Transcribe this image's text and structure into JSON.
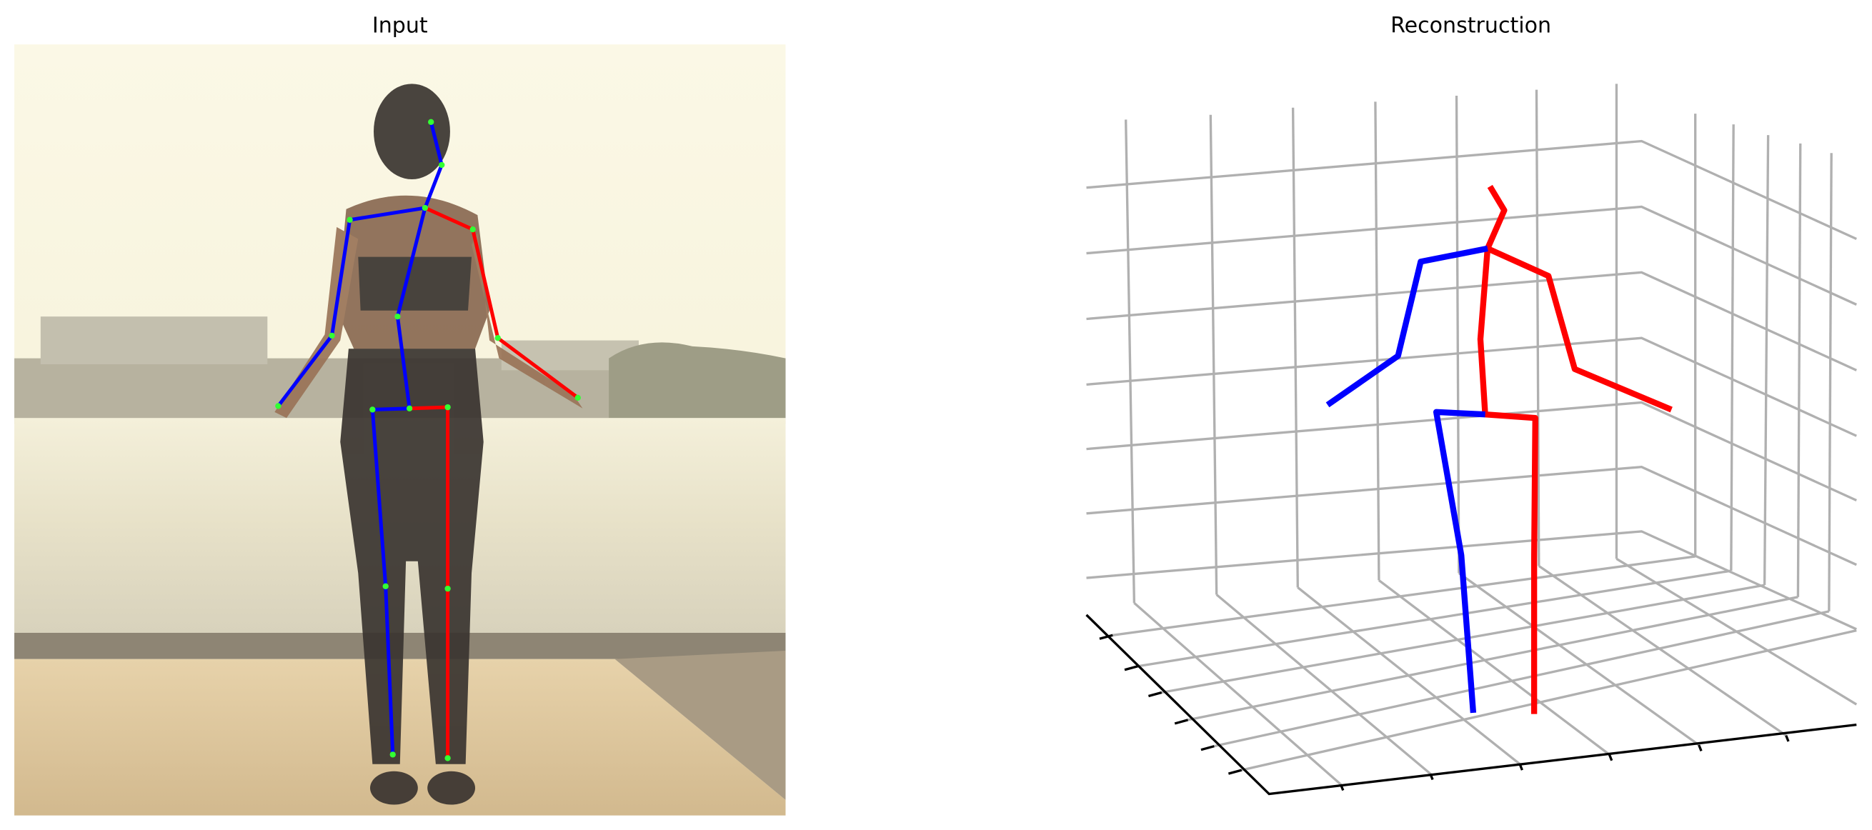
{
  "panels": [
    {
      "title": "Input"
    },
    {
      "title": "Reconstruction"
    }
  ]
}
